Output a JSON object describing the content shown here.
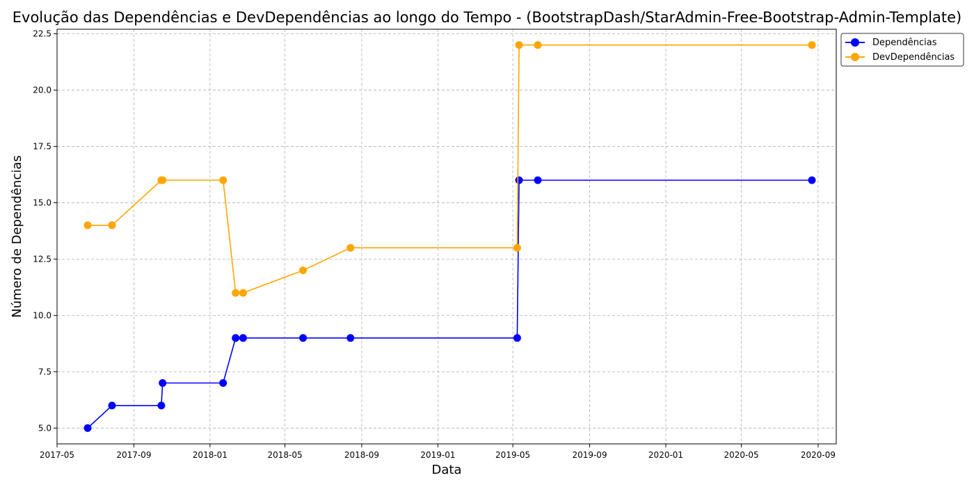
{
  "chart_data": {
    "type": "line",
    "title": "Evolução das Dependências e DevDependências ao longo do Tempo - (BootstrapDash/StarAdmin-Free-Bootstrap-Admin-Template)",
    "xlabel": "Data",
    "ylabel": "Número de Dependências",
    "x_ticks": [
      "2017-05",
      "2017-09",
      "2018-01",
      "2018-05",
      "2018-09",
      "2019-01",
      "2019-05",
      "2019-09",
      "2020-01",
      "2020-05",
      "2020-09"
    ],
    "y_ticks": [
      "5.0",
      "7.5",
      "10.0",
      "12.5",
      "15.0",
      "17.5",
      "20.0",
      "22.5"
    ],
    "xlim": [
      "2017-05-01",
      "2020-09-30"
    ],
    "ylim": [
      4.3,
      22.7
    ],
    "grid": true,
    "legend_position": "upper right, outside",
    "series": [
      {
        "name": "Dependências",
        "color": "#0000ff",
        "marker": "circle",
        "points": [
          {
            "x": "2017-06-19",
            "y": 5
          },
          {
            "x": "2017-07-28",
            "y": 6
          },
          {
            "x": "2017-10-15",
            "y": 6
          },
          {
            "x": "2017-10-17",
            "y": 7
          },
          {
            "x": "2018-01-22",
            "y": 7
          },
          {
            "x": "2018-02-11",
            "y": 9
          },
          {
            "x": "2018-02-23",
            "y": 9
          },
          {
            "x": "2018-05-30",
            "y": 9
          },
          {
            "x": "2018-08-14",
            "y": 9
          },
          {
            "x": "2019-05-08",
            "y": 9
          },
          {
            "x": "2019-05-11",
            "y": 16
          },
          {
            "x": "2019-06-10",
            "y": 16
          },
          {
            "x": "2020-08-22",
            "y": 16
          }
        ]
      },
      {
        "name": "DevDependências",
        "color": "#ffa500",
        "marker": "circle",
        "points": [
          {
            "x": "2017-06-19",
            "y": 14
          },
          {
            "x": "2017-07-28",
            "y": 14
          },
          {
            "x": "2017-10-15",
            "y": 16
          },
          {
            "x": "2017-10-17",
            "y": 16
          },
          {
            "x": "2018-01-22",
            "y": 16
          },
          {
            "x": "2018-02-11",
            "y": 11
          },
          {
            "x": "2018-02-23",
            "y": 11
          },
          {
            "x": "2018-05-30",
            "y": 12
          },
          {
            "x": "2018-08-14",
            "y": 13
          },
          {
            "x": "2019-05-08",
            "y": 13
          },
          {
            "x": "2019-05-11",
            "y": 22
          },
          {
            "x": "2019-06-10",
            "y": 22
          },
          {
            "x": "2020-08-22",
            "y": 22
          }
        ]
      }
    ]
  }
}
